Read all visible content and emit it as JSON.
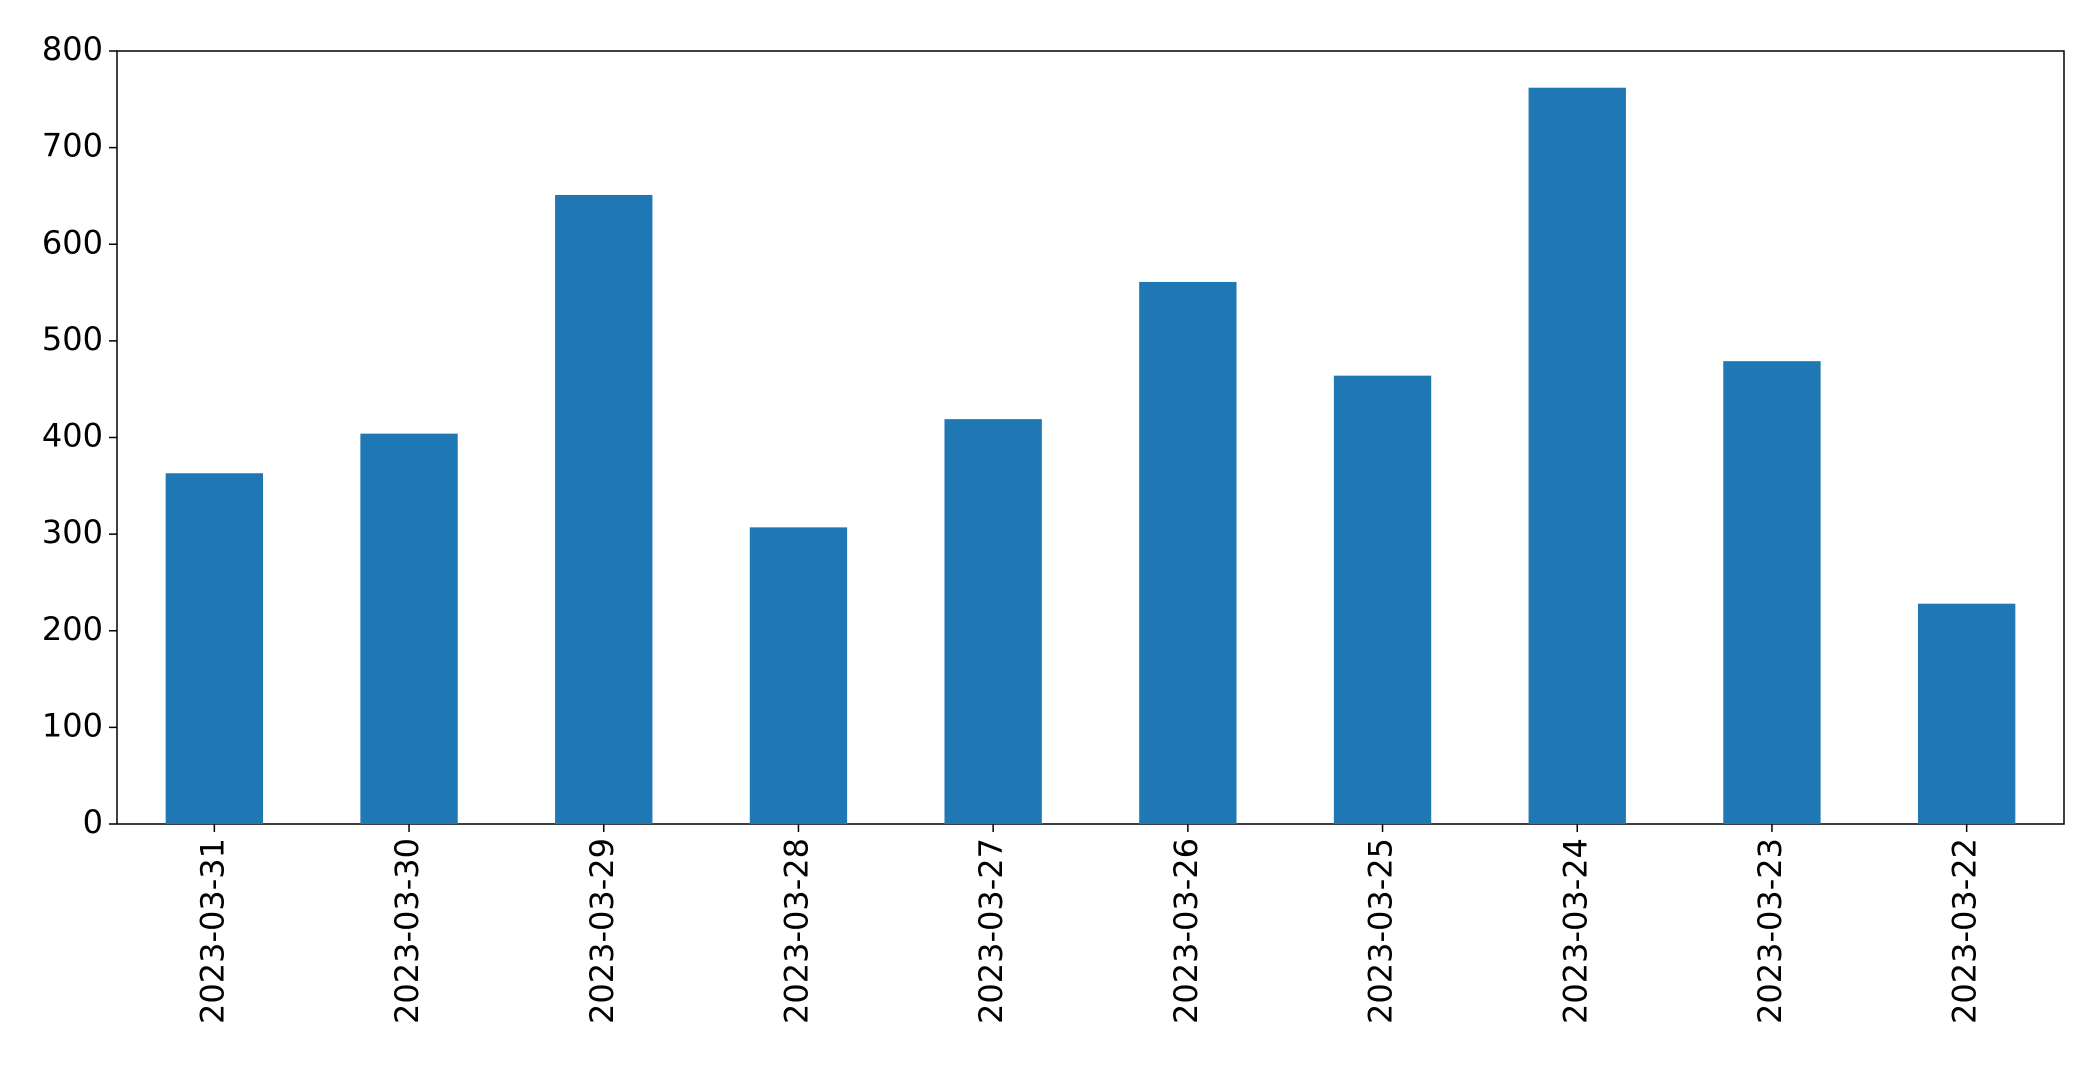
{
  "chart_data": {
    "type": "bar",
    "categories": [
      "2023-03-31",
      "2023-03-30",
      "2023-03-29",
      "2023-03-28",
      "2023-03-27",
      "2023-03-26",
      "2023-03-25",
      "2023-03-24",
      "2023-03-23",
      "2023-03-22"
    ],
    "values": [
      363,
      404,
      651,
      307,
      419,
      561,
      464,
      762,
      479,
      228
    ],
    "color": "#1f77b4",
    "ylim": [
      0,
      800
    ],
    "yticks": [
      0,
      100,
      200,
      300,
      400,
      500,
      600,
      700,
      800
    ],
    "grid": false
  }
}
